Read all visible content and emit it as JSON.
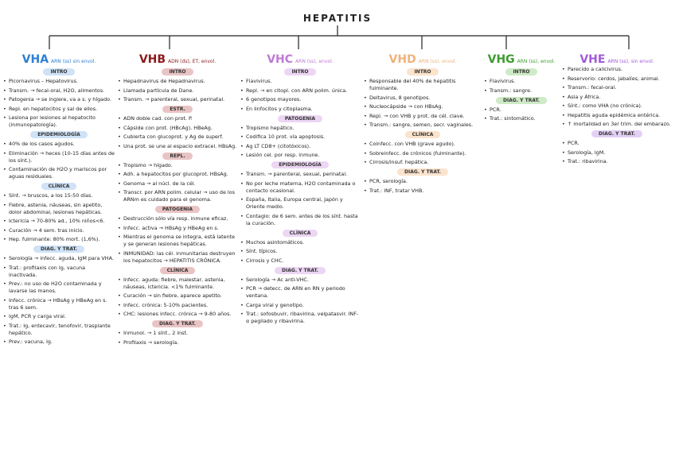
{
  "title": "HEPATITIS",
  "columns": [
    {
      "name": "VHA",
      "subtitle": "ARN (ss) sin envol.",
      "sections": [
        {
          "heading": "INTRO",
          "items": [
            "Picornavirus – Hepatovirus.",
            "Transm. → fecal-oral, H2O, alimentos.",
            "Patogenia → se ingiere, va a s. y hígado.",
            "Repl. en hepatocitos y sal de ellos.",
            "Lesiona por lesiones al hepatocito (inmunopatología)."
          ]
        },
        {
          "heading": "EPIDEMIOLOGÍA",
          "items": [
            "40% de los casos agudos.",
            "Eliminación → heces (10-15 días antes de los sínt.).",
            "Contaminación de H2O y mariscos por aguas residuales."
          ]
        },
        {
          "heading": "CLÍNICA",
          "items": [
            "Sínt. → bruscos, a los 15-50 días.",
            "Fiebre, astenia, náuseas, sin apetito, dolor abdominal, lesiones hepáticas.",
            "Ictericia → 70-80% ad., 10% niños<6.",
            "Curación → 4 sem. tras inicio.",
            "Hep. fulminante: 80% mort. (1,6%)."
          ]
        },
        {
          "heading": "DIAG. Y TRAT.",
          "items": [
            "Serología → infecc. aguda, IgM para VHA.",
            "Trat.: profilaxis con Ig, vacuna inactivada.",
            "Prev.: no uso de H2O contaminada y lavarse las manos.",
            "Infecc. crónica → HBsAg y HBeAg en s. tras 6 sem.",
            "IgM, PCR y carga viral.",
            "Trat.: Ig, entecavir, tenofovir, trasplante hepático.",
            "Prev.: vacuna, Ig."
          ]
        }
      ]
    },
    {
      "name": "VHB",
      "subtitle": "ADN (ds), ET, envol.",
      "sections": [
        {
          "heading": "INTRO",
          "items": [
            "Hepadnavirus de Hepadnavirus.",
            "Llamada partícula de Dane.",
            "Transm. → parenteral, sexual, perinatal."
          ]
        },
        {
          "heading": "ESTR.",
          "items": [
            "ADN doble cad. con prot. P.",
            "Cápside con prot. (HBcAg). HBeAg.",
            "Cubierta con glucoprot. y Ag de superf.",
            "Una prot. se une al espacio extracel. HBsAg."
          ]
        },
        {
          "heading": "REPL.",
          "items": [
            "Tropismo → hígado.",
            "Adh. a hepatocitos por glucoprot. HBsAg.",
            "Genoma → al núcl. de la cél.",
            "Transcr. por ARN polim. celular → uso de los ARNm es cuidado para el genoma."
          ]
        },
        {
          "heading": "PATOGENIA",
          "items": [
            "Destrucción sólo vía resp. inmune eficaz.",
            "Infecc. activa → HBsAg y HBeAg en s.",
            "Mientras el genoma se integra, está latente y se generan lesiones hepáticas.",
            "INMUNIDAD: las cél. inmunitarias destruyen los hepatocitos → HEPATITIS CRÓNICA."
          ]
        },
        {
          "heading": "CLÍNICA",
          "items": [
            "Infecc. aguda: fiebre, malestar, astenia, náuseas, ictericia. <1% fulminante.",
            "Curación → sin fiebre, aparece apetito.",
            "Infecc. crónica: 5-10% pacientes.",
            "CHC: lesiones infecc. crónica → 9-80 años."
          ]
        },
        {
          "heading": "DIAG. Y TRAT.",
          "items": [
            "Inmunol. → 1 sínt., 2 inst.",
            "Profilaxis → serología."
          ]
        }
      ]
    },
    {
      "name": "VHC",
      "subtitle": "ARN (ss), envol.",
      "sections": [
        {
          "heading": "INTRO",
          "items": [
            "Flavivirus.",
            "Repl. → en citopl. con ARN polim. única.",
            "6 genotipos mayores.",
            "En linfocitos y citoplasma."
          ]
        },
        {
          "heading": "PATOGENIA",
          "items": [
            "Tropismo hepático.",
            "Codifica 10 prot. vía apoptosis.",
            "Ag LT CD8+ (citotóxicos).",
            "Lesión cel. por resp. inmune."
          ]
        },
        {
          "heading": "EPIDEMIOLOGÍA",
          "items": [
            "Transm. → parenteral, sexual, perinatal.",
            "No por leche materna, H2O contaminada o contacto ocasional.",
            "España, Italia, Europa central, Japón y Oriente medio.",
            "Contagio: de 6 sem. antes de los sínt. hasta la curación."
          ]
        },
        {
          "heading": "CLÍNICA",
          "items": [
            "Muchos asintomáticos.",
            "Sínt. típicos.",
            "Cirrosis y CHC."
          ]
        },
        {
          "heading": "DIAG. Y TRAT.",
          "items": [
            "Serología → Ac anti-VHC.",
            "PCR → detecc. de ARN en RN y periodo ventana.",
            "Carga viral y genotipo.",
            "Trat.: sofosbuvir, ribavirina, velpatasvir. INF-α pegilado y ribavirina."
          ]
        }
      ]
    },
    {
      "name": "VHD",
      "subtitle": "ARN (ss), envol.",
      "sections": [
        {
          "heading": "INTRO",
          "items": [
            "Responsable del 40% de hepatitis fulminante.",
            "Deltavirus, 8 genotipos.",
            "Nucleocápside → con HBsAg.",
            "Repl. → con VHB y prot. de cél. clave.",
            "Transm.: sangre, semen, secr. vaginales."
          ]
        },
        {
          "heading": "CLÍNICA",
          "items": [
            "Coinfecc. con VHB (grave agudo).",
            "Sobreinfecc. de crónicos (fulminante).",
            "Cirrosis/insuf. hepática."
          ]
        },
        {
          "heading": "DIAG. Y TRAT.",
          "items": [
            "PCR, serología.",
            "Trat.: INF, tratar VHB."
          ]
        }
      ]
    },
    {
      "name": "VHG",
      "subtitle": "ARN (ss), envol.",
      "sections": [
        {
          "heading": "INTRO",
          "items": [
            "Flavivirus.",
            "Transm.: sangre."
          ]
        },
        {
          "heading": "DIAG. Y TRAT.",
          "items": [
            "PCR.",
            "Trat.: sintomático."
          ]
        }
      ]
    },
    {
      "name": "VHE",
      "subtitle": "ARN (ss), sin envol.",
      "sections": [
        {
          "items": [
            "Parecido a calicivirus.",
            "Reservorio: cerdos, jabalíes, animal.",
            "Transm.: fecal-oral.",
            "Asia y África.",
            "Sínt.: como VHA (no crónica).",
            "Hepatitis aguda epidémica entérica.",
            "↑ mortalidad en 3er trim. del embarazo."
          ]
        },
        {
          "heading": "DIAG. Y TRAT.",
          "items": [
            "PCR.",
            "Serología, IgM.",
            "Trat.: ribavirina."
          ]
        }
      ]
    }
  ]
}
